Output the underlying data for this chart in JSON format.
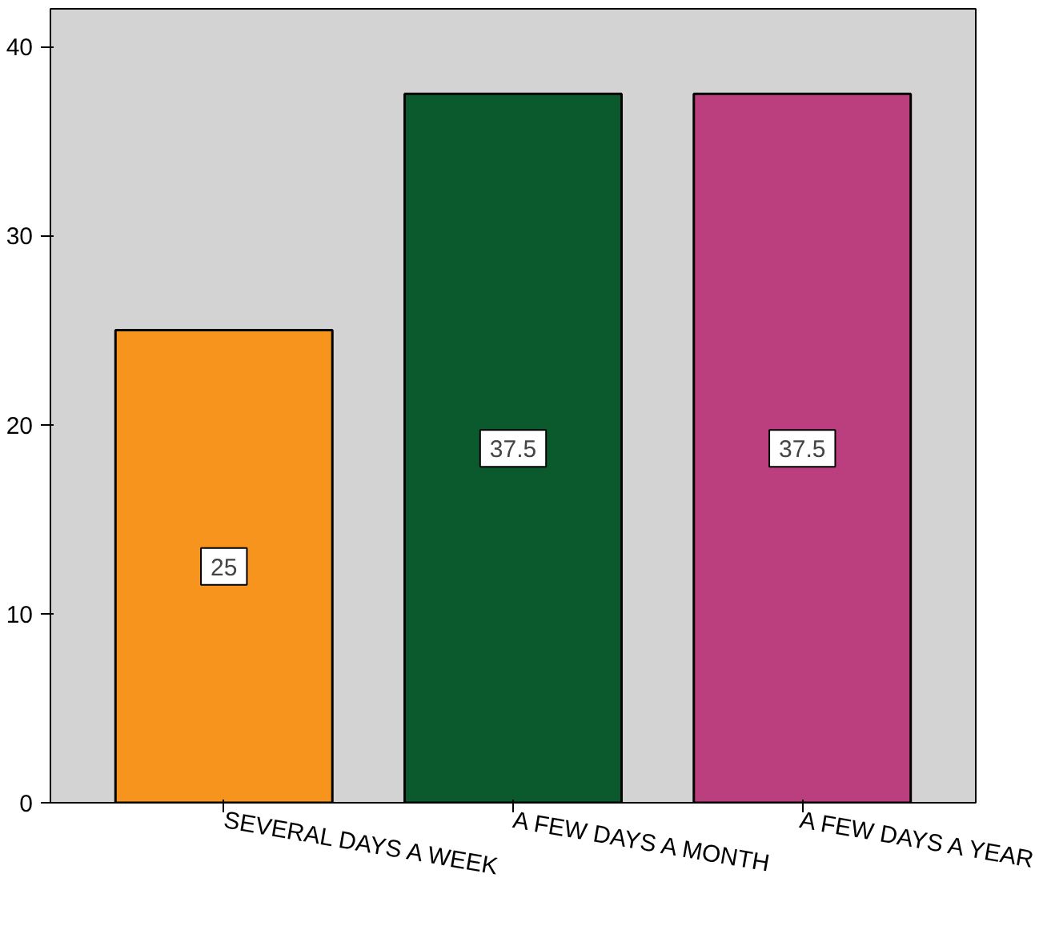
{
  "chart_data": {
    "type": "bar",
    "categories": [
      "SEVERAL DAYS A WEEK",
      "A FEW DAYS A MONTH",
      "A FEW DAYS A YEAR"
    ],
    "values": [
      25,
      37.5,
      37.5
    ],
    "colors": [
      "#f7941d",
      "#0a5a2e",
      "#bb3f7f"
    ],
    "ylim": [
      0,
      42
    ],
    "yticks": [
      0,
      10,
      20,
      30,
      40
    ],
    "grid": false,
    "data_labels": true
  }
}
